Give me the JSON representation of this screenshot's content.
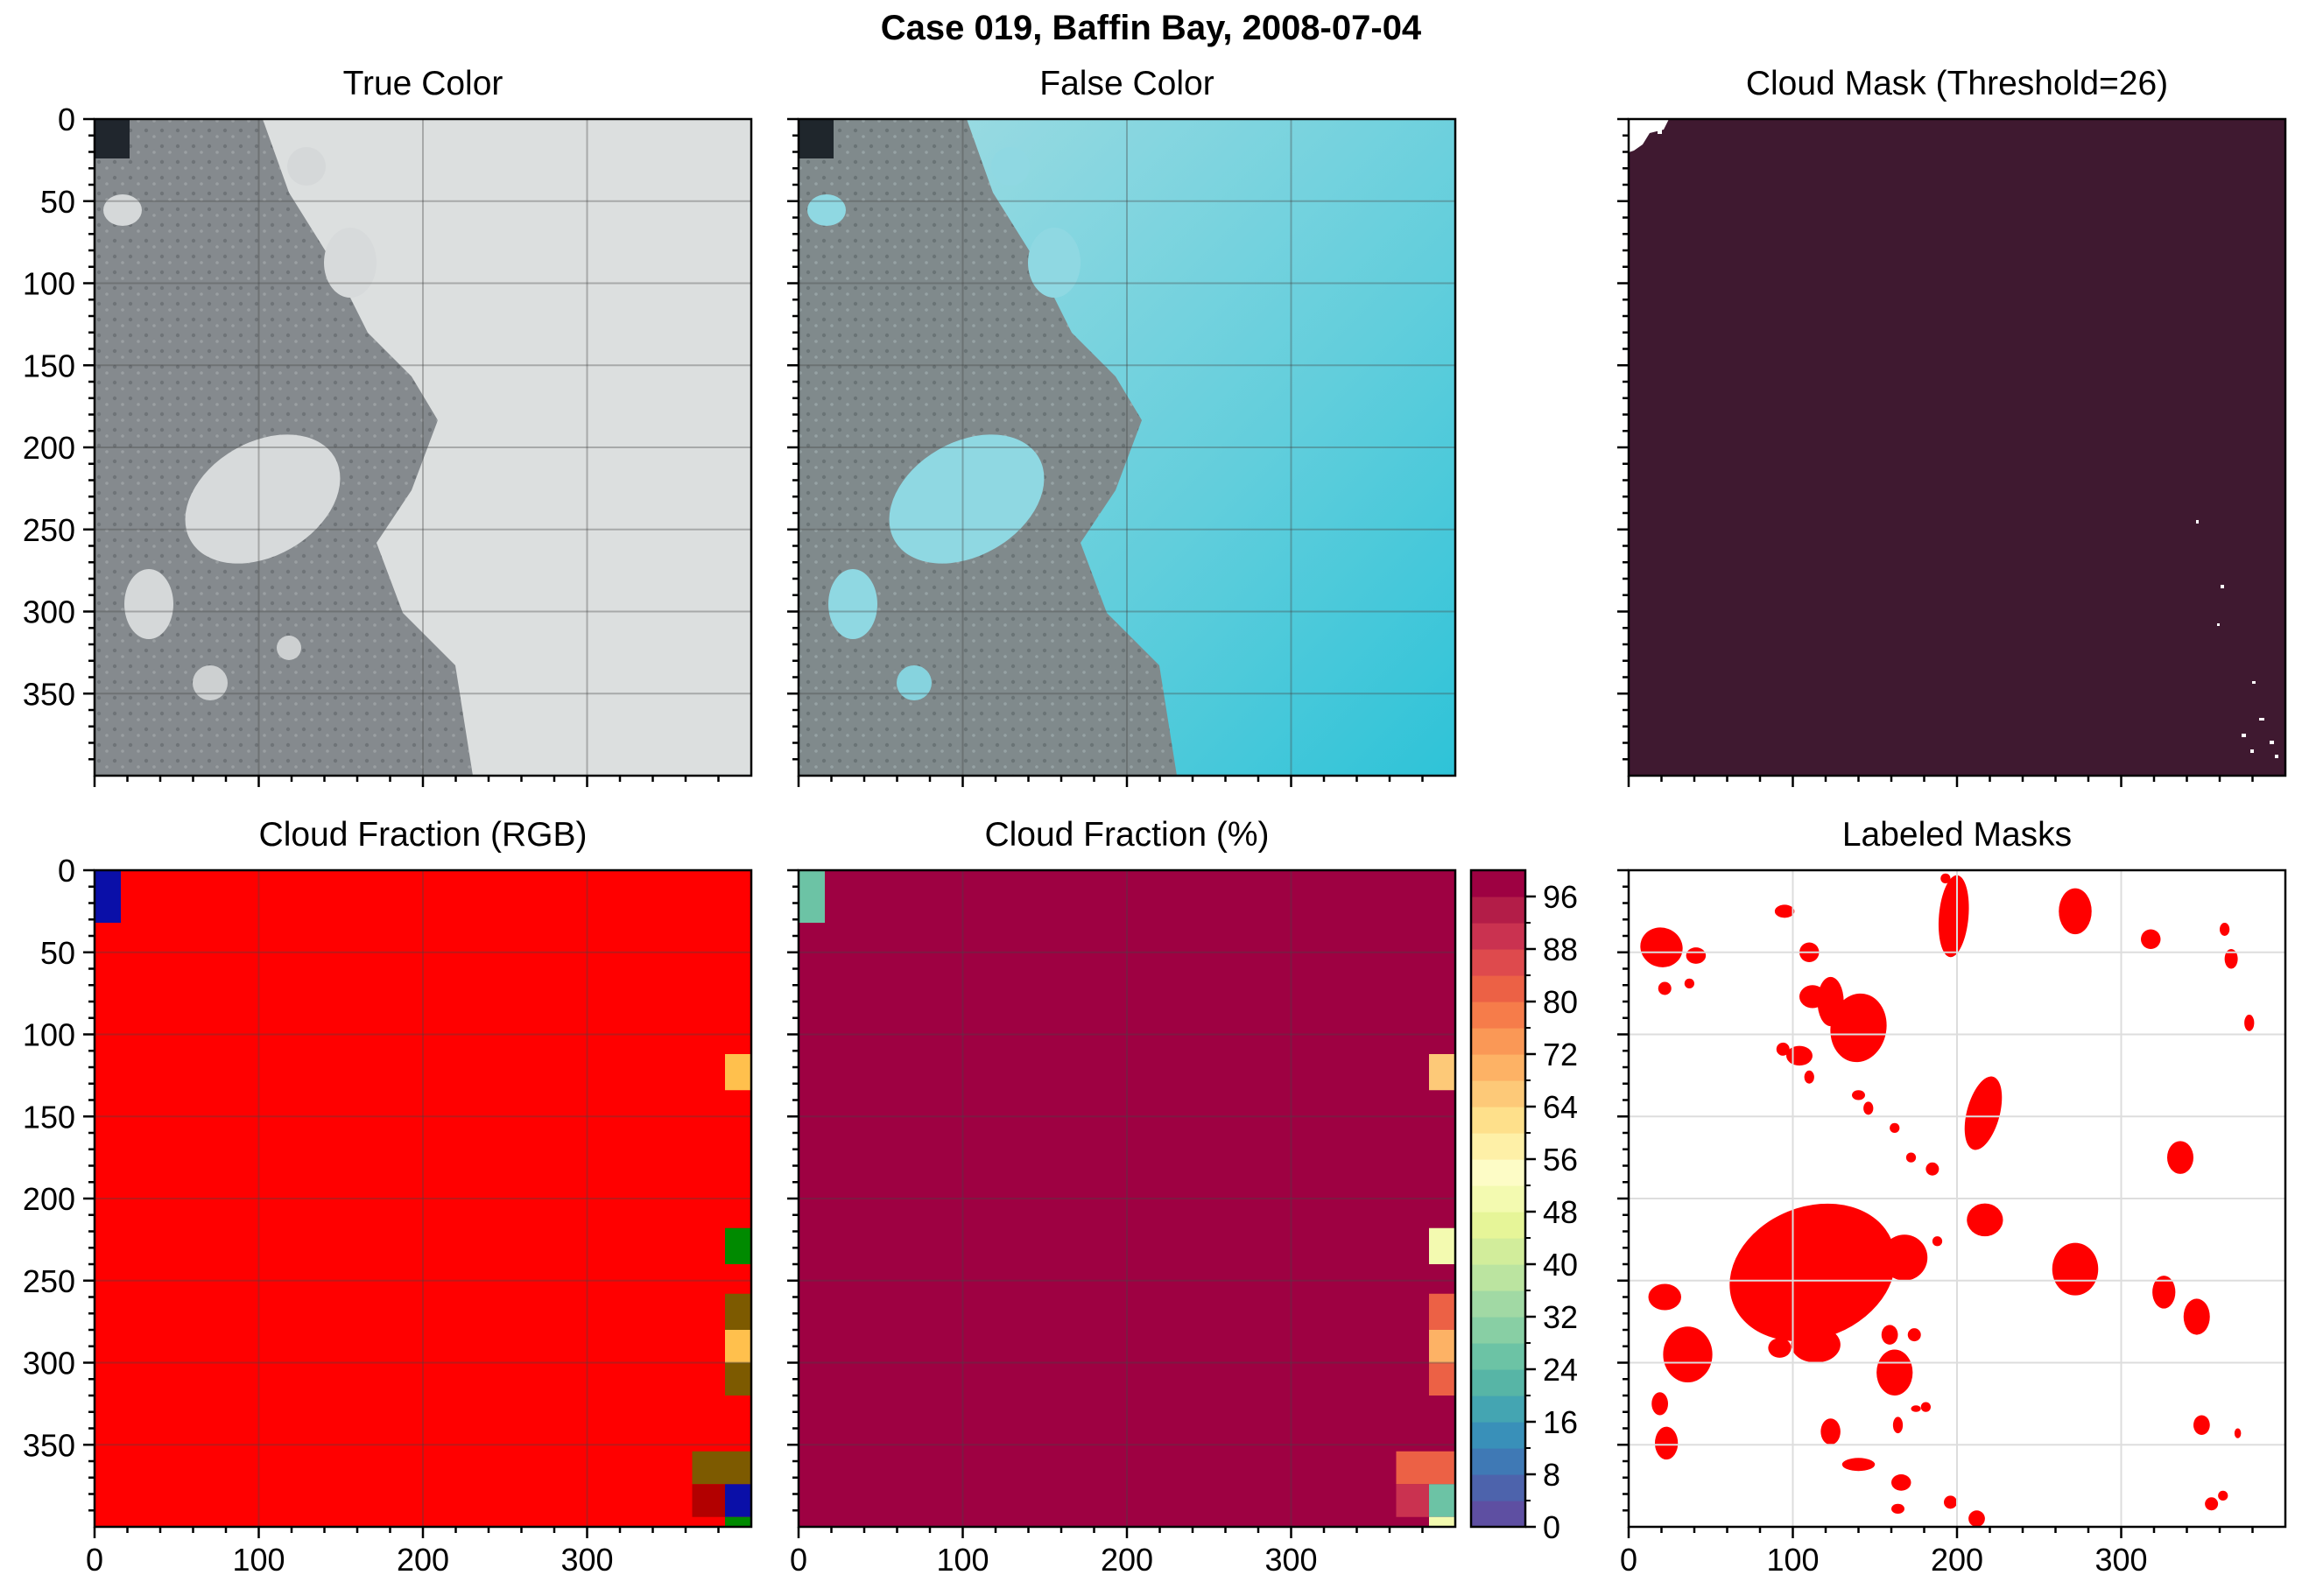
{
  "figure": {
    "suptitle": "Case 019, Baffin Bay, 2008-07-04"
  },
  "colors": {
    "cloud_fraction_rgb_bg": "#ff0000",
    "cloud_fraction_pct_bg": "#9e0142",
    "cloud_mask_bg": "#3f1930",
    "label_mask": "#ff0000",
    "true_color_ice": "#d9dcdc",
    "true_color_water": "#7d8286",
    "false_color_ice": "#5fd0df",
    "false_color_water": "#7e888a"
  },
  "chart_data": [
    {
      "id": "true_color",
      "type": "image",
      "title": "True Color",
      "ylim": [
        400,
        0
      ],
      "xlim": [
        0,
        400
      ],
      "yticks": [
        "0",
        "50",
        "100",
        "150",
        "200",
        "250",
        "300",
        "350"
      ],
      "xticks": [],
      "grid": true
    },
    {
      "id": "false_color",
      "type": "image",
      "title": "False Color",
      "ylim": [
        400,
        0
      ],
      "xlim": [
        0,
        400
      ],
      "yticks": [],
      "xticks": [],
      "grid": true
    },
    {
      "id": "cloud_mask",
      "type": "image",
      "title": "Cloud Mask (Threshold=26)",
      "ylim": [
        400,
        0
      ],
      "xlim": [
        0,
        400
      ],
      "yticks": [],
      "xticks": [],
      "grid": false
    },
    {
      "id": "cloud_fraction_rgb",
      "type": "heatmap",
      "title": "Cloud Fraction (RGB)",
      "ylim": [
        400,
        0
      ],
      "xlim": [
        0,
        400
      ],
      "yticks": [
        "0",
        "50",
        "100",
        "150",
        "200",
        "250",
        "300",
        "350"
      ],
      "xticks": [
        "0",
        "100",
        "200",
        "300"
      ],
      "grid": true,
      "background": "red",
      "cells": [
        {
          "x0": 0,
          "x1": 16,
          "y0": 0,
          "y1": 32,
          "color": "#0a0fa8"
        },
        {
          "x0": 384,
          "x1": 400,
          "y0": 112,
          "y1": 134,
          "color": "#ffc04d"
        },
        {
          "x0": 384,
          "x1": 400,
          "y0": 218,
          "y1": 240,
          "color": "#008a00"
        },
        {
          "x0": 384,
          "x1": 400,
          "y0": 258,
          "y1": 280,
          "color": "#7d5a00"
        },
        {
          "x0": 384,
          "x1": 400,
          "y0": 280,
          "y1": 300,
          "color": "#ffc04d"
        },
        {
          "x0": 384,
          "x1": 400,
          "y0": 300,
          "y1": 320,
          "color": "#7d5a00"
        },
        {
          "x0": 364,
          "x1": 400,
          "y0": 354,
          "y1": 374,
          "color": "#7d5a00"
        },
        {
          "x0": 364,
          "x1": 384,
          "y0": 374,
          "y1": 394,
          "color": "#b20000"
        },
        {
          "x0": 384,
          "x1": 400,
          "y0": 374,
          "y1": 394,
          "color": "#0a0fa8"
        },
        {
          "x0": 384,
          "x1": 400,
          "y0": 394,
          "y1": 400,
          "color": "#008a00"
        }
      ]
    },
    {
      "id": "cloud_fraction_pct",
      "type": "heatmap",
      "title": "Cloud Fraction (%)",
      "ylim": [
        400,
        0
      ],
      "xlim": [
        0,
        400
      ],
      "yticks": [],
      "xticks": [
        "0",
        "100",
        "200",
        "300"
      ],
      "grid": true,
      "background_value": 100,
      "cells": [
        {
          "x0": 0,
          "x1": 16,
          "y0": 0,
          "y1": 32,
          "value": 24
        },
        {
          "x0": 384,
          "x1": 400,
          "y0": 112,
          "y1": 134,
          "value": 66
        },
        {
          "x0": 384,
          "x1": 400,
          "y0": 218,
          "y1": 240,
          "value": 50
        },
        {
          "x0": 384,
          "x1": 400,
          "y0": 258,
          "y1": 280,
          "value": 80
        },
        {
          "x0": 384,
          "x1": 400,
          "y0": 280,
          "y1": 300,
          "value": 70
        },
        {
          "x0": 384,
          "x1": 400,
          "y0": 300,
          "y1": 320,
          "value": 80
        },
        {
          "x0": 364,
          "x1": 400,
          "y0": 354,
          "y1": 374,
          "value": 80
        },
        {
          "x0": 364,
          "x1": 384,
          "y0": 374,
          "y1": 394,
          "value": 88
        },
        {
          "x0": 384,
          "x1": 400,
          "y0": 374,
          "y1": 394,
          "value": 24
        },
        {
          "x0": 384,
          "x1": 400,
          "y0": 394,
          "y1": 400,
          "value": 50
        }
      ],
      "colorbar": {
        "ticks": [
          "0",
          "8",
          "16",
          "24",
          "32",
          "40",
          "48",
          "56",
          "64",
          "72",
          "80",
          "88",
          "96"
        ],
        "range": [
          0,
          100
        ],
        "levels": 25,
        "colors": [
          "#5e4fa2",
          "#4d63ac",
          "#3f79b5",
          "#3990b9",
          "#44a5b2",
          "#57b5a6",
          "#6cc3a5",
          "#88cfa4",
          "#a1d9a4",
          "#bbe4a0",
          "#d2ed9b",
          "#e6f598",
          "#f3fab0",
          "#fdfcc6",
          "#fef0a7",
          "#fee08b",
          "#fdc978",
          "#fdb265",
          "#fa9856",
          "#f67c4a",
          "#ec6145",
          "#de4a4d",
          "#ca3250",
          "#b31d48",
          "#9e0142"
        ]
      },
      "colormap": [
        "#5e4fa2",
        "#4d63ac",
        "#3f79b5",
        "#3990b9",
        "#44a5b2",
        "#57b5a6",
        "#6cc3a5",
        "#88cfa4",
        "#a1d9a4",
        "#bbe4a0",
        "#d2ed9b",
        "#e6f598",
        "#f3fab0",
        "#fdfcc6",
        "#fef0a7",
        "#fee08b",
        "#fdc978",
        "#fdb265",
        "#fa9856",
        "#f67c4a",
        "#ec6145",
        "#de4a4d",
        "#ca3250",
        "#b31d48",
        "#9e0142"
      ]
    },
    {
      "id": "labeled_masks",
      "type": "image",
      "title": "Labeled Masks",
      "ylim": [
        400,
        0
      ],
      "xlim": [
        0,
        400
      ],
      "yticks": [],
      "xticks": [
        "0",
        "100",
        "200",
        "300"
      ],
      "grid": true,
      "floes": [
        [
          112,
          245,
          52,
          40,
          -22
        ],
        [
          198,
          28,
          9,
          25,
          5
        ],
        [
          20,
          47,
          13,
          12,
          20
        ],
        [
          140,
          96,
          17,
          21,
          10
        ],
        [
          272,
          25,
          10,
          14,
          0
        ],
        [
          318,
          42,
          6,
          6,
          0
        ],
        [
          193,
          5,
          3,
          3,
          0
        ],
        [
          95,
          25,
          6,
          4,
          0
        ],
        [
          110,
          50,
          6,
          6,
          0
        ],
        [
          41,
          52,
          6,
          5,
          0
        ],
        [
          37,
          69,
          3,
          3,
          0
        ],
        [
          22,
          72,
          4,
          4,
          0
        ],
        [
          112,
          77,
          8,
          7,
          0
        ],
        [
          123,
          80,
          8,
          15,
          0
        ],
        [
          94,
          109,
          4,
          4,
          0
        ],
        [
          104,
          113,
          8,
          6,
          0
        ],
        [
          110,
          126,
          3,
          4,
          0
        ],
        [
          216,
          148,
          10,
          23,
          15
        ],
        [
          140,
          137,
          4,
          3,
          0
        ],
        [
          146,
          145,
          3,
          4,
          0
        ],
        [
          162,
          157,
          3,
          3,
          0
        ],
        [
          172,
          175,
          3,
          3,
          0
        ],
        [
          185,
          182,
          4,
          4,
          0
        ],
        [
          363,
          36,
          3,
          4,
          0
        ],
        [
          367,
          54,
          4,
          6,
          0
        ],
        [
          378,
          93,
          3,
          5,
          0
        ],
        [
          336,
          175,
          8,
          10,
          0
        ],
        [
          217,
          213,
          11,
          10,
          0
        ],
        [
          168,
          236,
          14,
          14,
          0
        ],
        [
          150,
          250,
          5,
          6,
          0
        ],
        [
          272,
          243,
          14,
          16,
          0
        ],
        [
          188,
          226,
          3,
          3,
          0
        ],
        [
          135,
          244,
          4,
          4,
          0
        ],
        [
          22,
          260,
          10,
          8,
          0
        ],
        [
          36,
          295,
          15,
          17,
          0
        ],
        [
          114,
          289,
          15,
          11,
          0
        ],
        [
          92,
          291,
          7,
          6,
          0
        ],
        [
          159,
          283,
          5,
          6,
          0
        ],
        [
          162,
          306,
          11,
          14,
          0
        ],
        [
          174,
          283,
          4,
          4,
          0
        ],
        [
          326,
          257,
          7,
          10,
          0
        ],
        [
          346,
          272,
          8,
          11,
          0
        ],
        [
          181,
          327,
          3,
          3,
          0
        ],
        [
          19,
          325,
          5,
          7,
          0
        ],
        [
          23,
          349,
          7,
          10,
          0
        ],
        [
          349,
          338,
          5,
          6,
          0
        ],
        [
          371,
          343,
          2,
          3,
          0
        ],
        [
          164,
          338,
          3,
          5,
          0
        ],
        [
          123,
          342,
          6,
          8,
          0
        ],
        [
          175,
          328,
          3,
          2,
          0
        ],
        [
          140,
          362,
          10,
          4,
          0
        ],
        [
          166,
          373,
          6,
          5,
          0
        ],
        [
          196,
          385,
          4,
          4,
          0
        ],
        [
          212,
          395,
          5,
          5,
          0
        ],
        [
          164,
          389,
          4,
          3,
          0
        ],
        [
          355,
          386,
          4,
          4,
          0
        ],
        [
          362,
          381,
          3,
          3,
          0
        ]
      ]
    }
  ]
}
